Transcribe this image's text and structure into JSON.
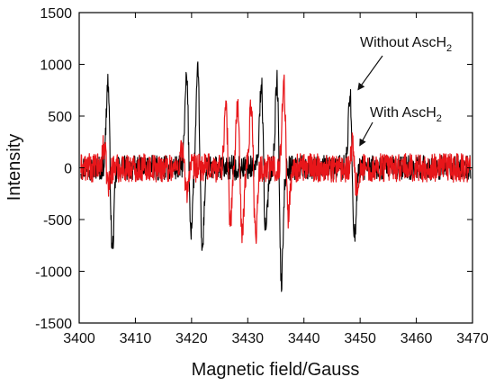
{
  "chart_data": {
    "type": "line",
    "xlabel": "Magnetic field/Gauss",
    "ylabel": "Intensity",
    "xlim": [
      3400,
      3470
    ],
    "ylim": [
      -1500,
      1500
    ],
    "x_ticks": [
      3400,
      3410,
      3420,
      3430,
      3440,
      3450,
      3460,
      3470
    ],
    "y_ticks": [
      -1500,
      -1000,
      -500,
      0,
      500,
      1000,
      1500
    ],
    "grid": false,
    "legend": "none",
    "noise_amplitude": 120,
    "series": [
      {
        "name": "Without AscH2",
        "color": "#000000",
        "features": [
          {
            "x": 3405.5,
            "pos": 900,
            "neg": -870
          },
          {
            "x": 3419.5,
            "pos": 920,
            "neg": -650
          },
          {
            "x": 3421.5,
            "pos": 980,
            "neg": -880
          },
          {
            "x": 3432.8,
            "pos": 880,
            "neg": -700
          },
          {
            "x": 3435.6,
            "pos": 930,
            "neg": -1180
          },
          {
            "x": 3448.6,
            "pos": 750,
            "neg": -720
          }
        ]
      },
      {
        "name": "With AscH2",
        "color": "#e8161a",
        "features": [
          {
            "x": 3404.8,
            "pos": 220,
            "neg": -180
          },
          {
            "x": 3418.7,
            "pos": 220,
            "neg": -240
          },
          {
            "x": 3426.5,
            "pos": 620,
            "neg": -550
          },
          {
            "x": 3428.6,
            "pos": 670,
            "neg": -740
          },
          {
            "x": 3431.0,
            "pos": 680,
            "neg": -690
          },
          {
            "x": 3436.8,
            "pos": 870,
            "neg": -520
          },
          {
            "x": 3449.0,
            "pos": 230,
            "neg": -200
          }
        ]
      }
    ],
    "annotations": [
      {
        "text": "Without AscH",
        "subscript": "2",
        "arrow_to": [
          3449.0,
          720
        ]
      },
      {
        "text": "With AscH",
        "subscript": "2",
        "arrow_to": [
          3449.3,
          180
        ]
      }
    ]
  }
}
